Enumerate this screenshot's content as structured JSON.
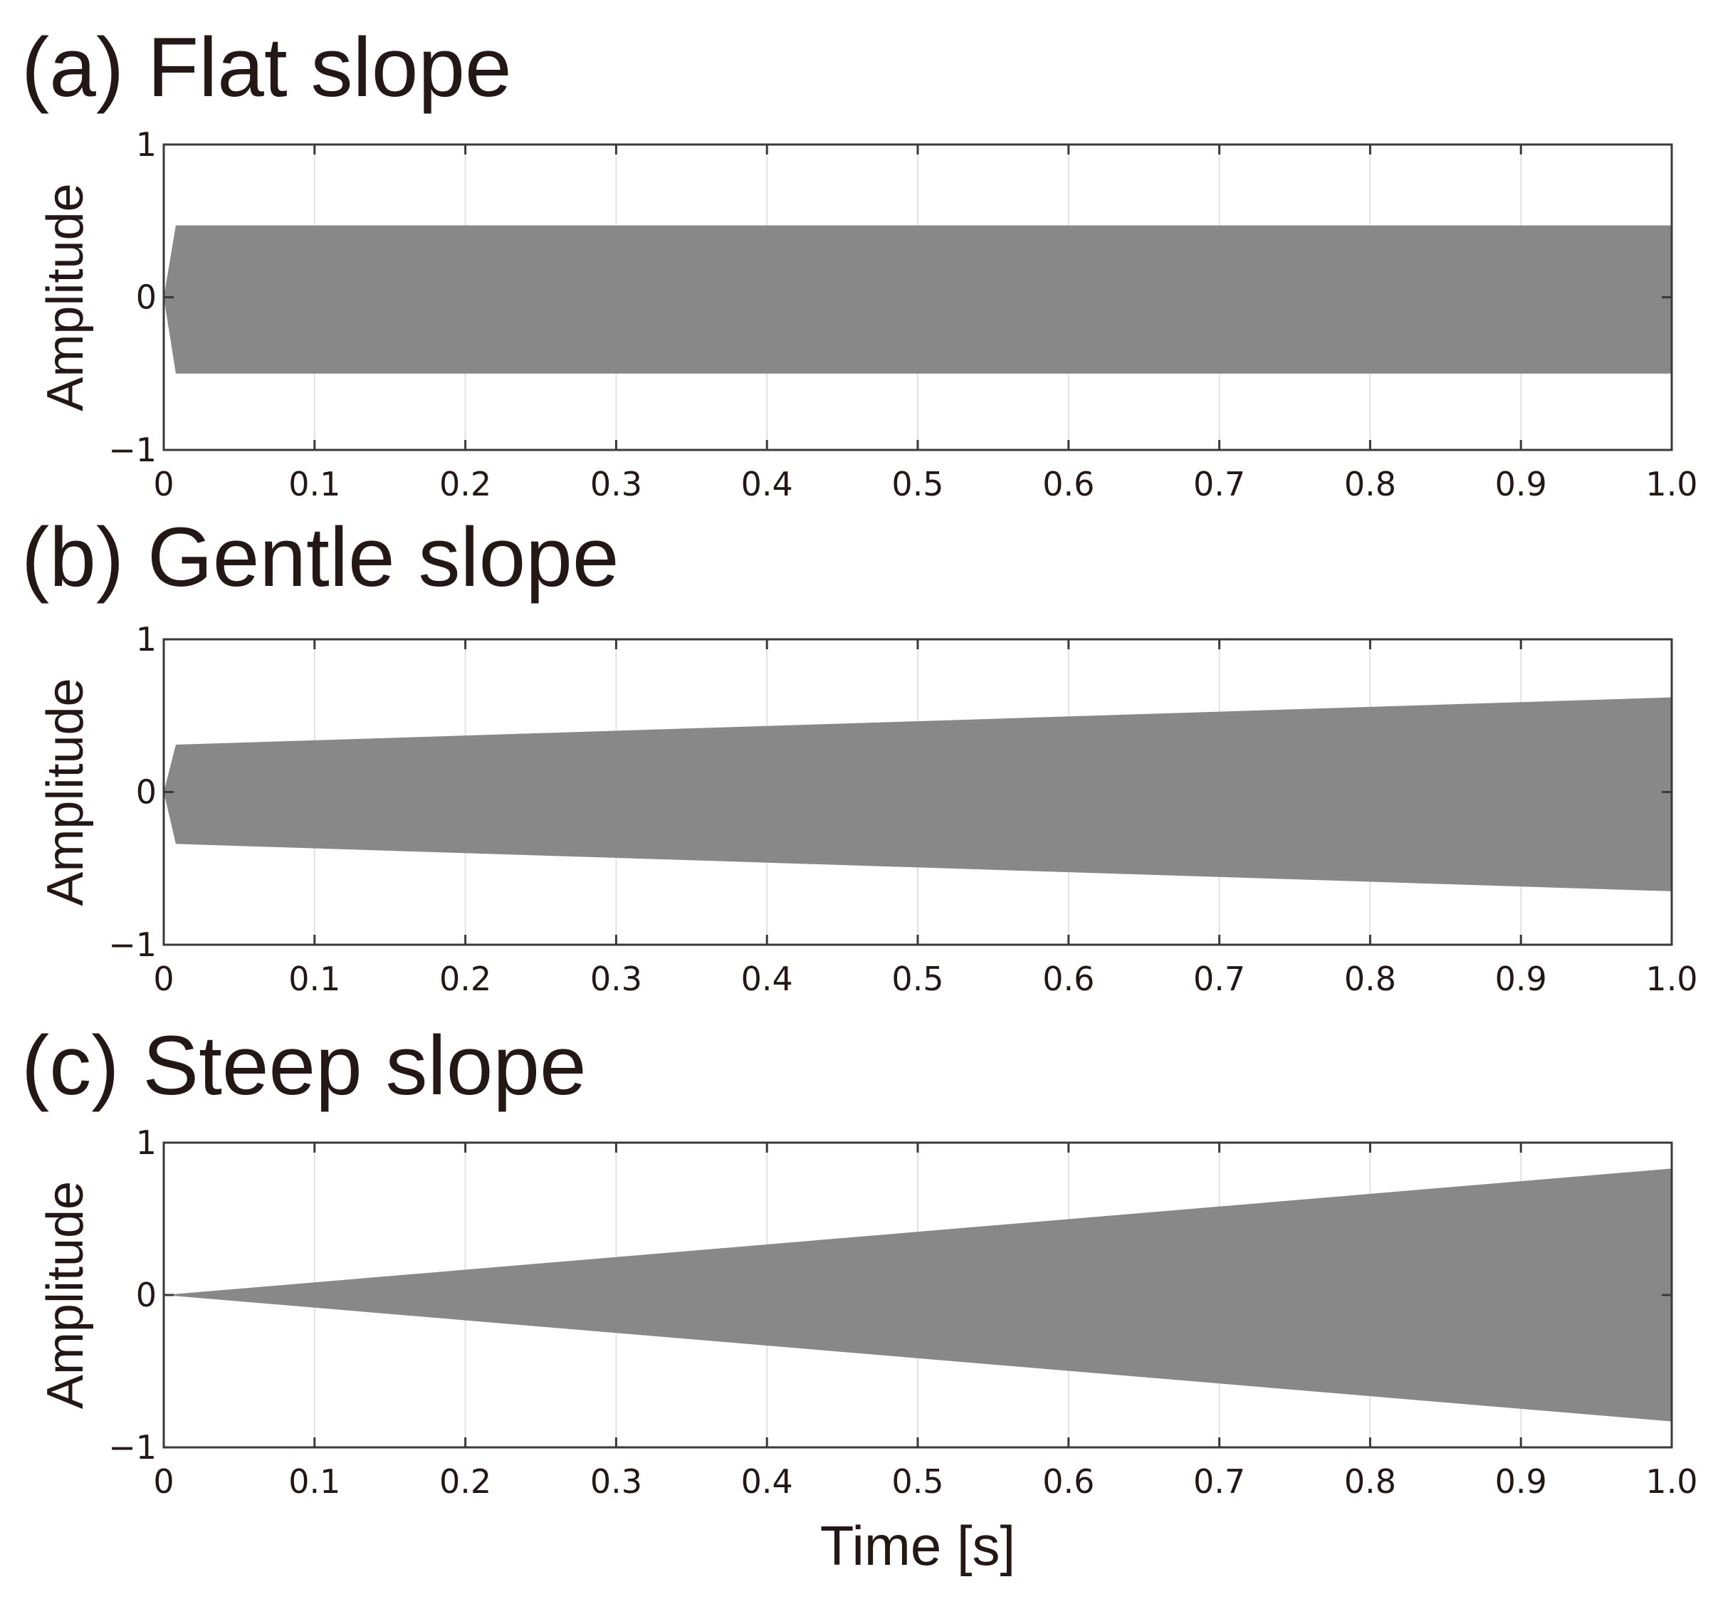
{
  "colors": {
    "fill": "#888888",
    "grid": "#e2e2e2",
    "axis": "#3a3a3a",
    "text": "#231815"
  },
  "xlabel": "Time [s]",
  "chart_data": [
    {
      "type": "area",
      "title": "(a) Flat slope",
      "xlabel": "",
      "ylabel": "Amplitude",
      "xlim": [
        0,
        1.0
      ],
      "ylim": [
        -1,
        1
      ],
      "grid": "vertical",
      "xticks": [
        "0",
        "0.1",
        "0.2",
        "0.3",
        "0.4",
        "0.5",
        "0.6",
        "0.7",
        "0.8",
        "0.9",
        "1.0"
      ],
      "yticks": [
        "1",
        "0",
        "−1"
      ],
      "envelope": {
        "x": [
          0,
          0.008,
          1.0
        ],
        "upper": [
          0,
          0.47,
          0.47
        ],
        "lower": [
          0,
          -0.5,
          -0.5
        ]
      }
    },
    {
      "type": "area",
      "title": "(b) Gentle slope",
      "xlabel": "",
      "ylabel": "Amplitude",
      "xlim": [
        0,
        1.0
      ],
      "ylim": [
        -1,
        1
      ],
      "grid": "vertical",
      "xticks": [
        "0",
        "0.1",
        "0.2",
        "0.3",
        "0.4",
        "0.5",
        "0.6",
        "0.7",
        "0.8",
        "0.9",
        "1.0"
      ],
      "yticks": [
        "1",
        "0",
        "−1"
      ],
      "envelope": {
        "x": [
          0,
          0.008,
          1.0
        ],
        "upper": [
          0,
          0.31,
          0.62
        ],
        "lower": [
          0,
          -0.34,
          -0.65
        ]
      }
    },
    {
      "type": "area",
      "title": "(c) Steep slope",
      "xlabel": "Time [s]",
      "ylabel": "Amplitude",
      "xlim": [
        0,
        1.0
      ],
      "ylim": [
        -1,
        1
      ],
      "grid": "vertical",
      "xticks": [
        "0",
        "0.1",
        "0.2",
        "0.3",
        "0.4",
        "0.5",
        "0.6",
        "0.7",
        "0.8",
        "0.9",
        "1.0"
      ],
      "yticks": [
        "1",
        "0",
        "−1"
      ],
      "envelope": {
        "x": [
          0,
          1.0
        ],
        "upper": [
          0,
          0.83
        ],
        "lower": [
          0,
          -0.83
        ]
      }
    }
  ]
}
